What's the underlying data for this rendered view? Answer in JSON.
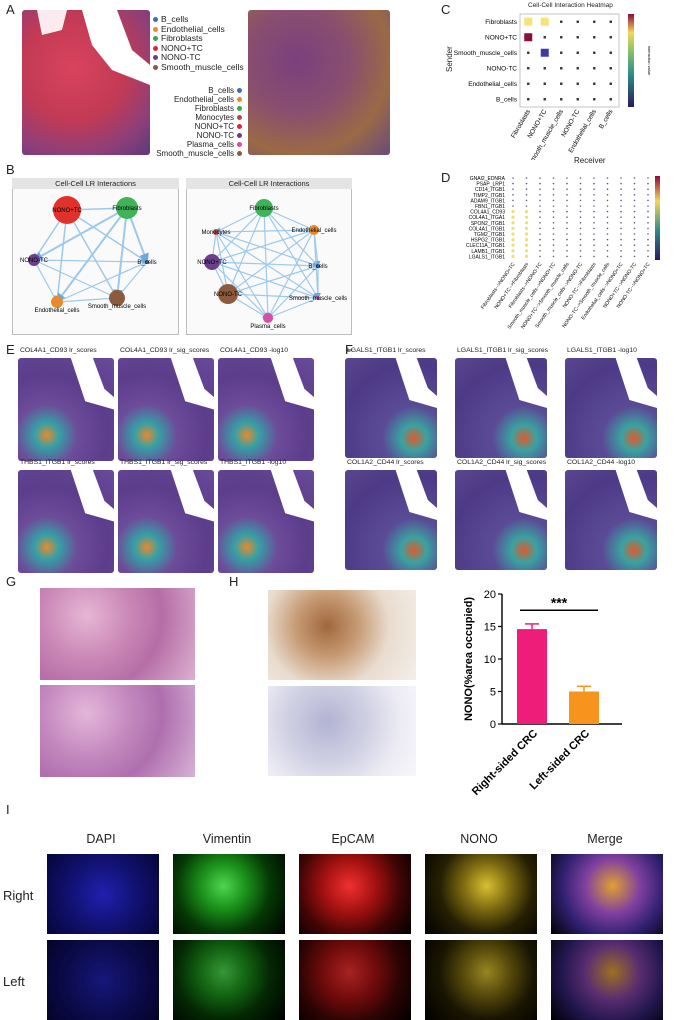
{
  "panels": {
    "A": "A",
    "B": "B",
    "C": "C",
    "D": "D",
    "E": "E",
    "F": "F",
    "G": "G",
    "H": "H",
    "I": "I"
  },
  "panelA": {
    "legend1": [
      "B_cells",
      "Endothelial_cells",
      "Fibroblasts",
      "NONO+TC",
      "NONO-TC",
      "Smooth_muscle_cells"
    ],
    "legend2": [
      "B_cells",
      "Endothelial_cells",
      "Fibroblasts",
      "Monocytes",
      "NONO+TC",
      "NONO-TC",
      "Plasma_cells",
      "Smooth_muscle_cells"
    ],
    "colors": {
      "B_cells": "#3a6fb0",
      "Endothelial_cells": "#e88a2c",
      "Fibroblasts": "#3aa65a",
      "Monocytes": "#b04a4a",
      "NONO+TC": "#d32b3a",
      "NONO-TC": "#6b3f8c",
      "Plasma_cells": "#d44fa6",
      "Smooth_muscle_cells": "#8c5a3c"
    }
  },
  "panelB": {
    "title1": "Cell-Cell LR Interactions",
    "title2": "Cell-Cell LR Interactions",
    "net1": [
      "NONO+TC",
      "Fibroblasts",
      "NONO-TC",
      "B_cells",
      "Endothelial_cells",
      "Smooth_muscle_cells"
    ],
    "net2": [
      "Fibroblasts",
      "Monocytes",
      "Endothelial_cells",
      "NONO+TC",
      "B_cells",
      "NONO-TC",
      "Smooth_muscle_cells",
      "Plasma_cells"
    ]
  },
  "panelC": {
    "title": "Cell-Cell Interaction Heatmap",
    "ylabel": "Sender",
    "xlabel": "Receiver",
    "rows": [
      "Fibroblasts",
      "NONO+TC",
      "Smooth_muscle_cells",
      "NONO-TC",
      "Endothelial_cells",
      "B_cells"
    ],
    "cols": [
      "Fibroblasts",
      "NONO+TC",
      "Smooth_muscle_cells",
      "NONO-TC",
      "Endothelial_cells",
      "B_cells"
    ],
    "cbar_label": "Interaction value"
  },
  "panelD": {
    "rows": [
      "GNAI2_EDNRA",
      "PSAP_LRP1",
      "CD14_ITGB1",
      "TIMP2_ITGB1",
      "ADAM9_ITGB1",
      "FBN1_ITGB1",
      "COL4A1_CD93",
      "COL4A1_ITGA1",
      "SPON2_ITGB1",
      "COL4A1_ITGB1",
      "TGM2_ITGB1",
      "HSPG2_ITGB1",
      "CLEC11A_ITGB1",
      "LAMB1_ITGB1",
      "LGALS1_ITGB1"
    ],
    "cols": [
      "Fibroblasts-->NONO+TC",
      "NONO+TC-->Fibroblasts",
      "Fibroblasts-->NONO-TC",
      "Smooth_muscle_cells-->NONO+TC",
      "NONO+TC-->Smooth_muscle_cells",
      "Smooth_muscle_cells-->NONO-TC",
      "NONO-TC-->Fibroblasts",
      "NONO-TC-->Smooth_muscle_cells",
      "Endothelial_cells-->NONO+TC",
      "NONO+TC-->NONO-TC",
      "NONO-TC-->NONO+TC"
    ]
  },
  "panelE": {
    "titles": [
      "COL4A1_CD93 lr_scores",
      "COL4A1_CD93 lr_sig_scores",
      "COL4A1_CD93 -log10",
      "THBS1_ITGB1 lr_scores",
      "THBS1_ITGB1 lr_sig_scores",
      "THBS1_ITGB1 -log10"
    ]
  },
  "panelF": {
    "titles": [
      "LGALS1_ITGB1 lr_scores",
      "LGALS1_ITGB1 lr_sig_scores",
      "LGALS1_ITGB1 -log10",
      "COL1A2_CD44 lr_scores",
      "COL1A2_CD44 lr_sig_scores",
      "COL1A2_CD44 -log10"
    ]
  },
  "chart_data": {
    "type": "bar",
    "categories": [
      "Right-sided CRC",
      "Left-sided CRC"
    ],
    "values": [
      14.6,
      5.0
    ],
    "errors": [
      0.8,
      0.8
    ],
    "colors": [
      "#ee1d7a",
      "#f7941d"
    ],
    "ylabel": "NONO(%area occupied)",
    "ylim": [
      0,
      20
    ],
    "yticks": [
      "0",
      "5",
      "10",
      "15",
      "20"
    ],
    "significance": "***"
  },
  "panelI": {
    "channels": [
      "DAPI",
      "Vimentin",
      "EpCAM",
      "NONO",
      "Merge"
    ],
    "rows": [
      "Right",
      "Left"
    ]
  }
}
